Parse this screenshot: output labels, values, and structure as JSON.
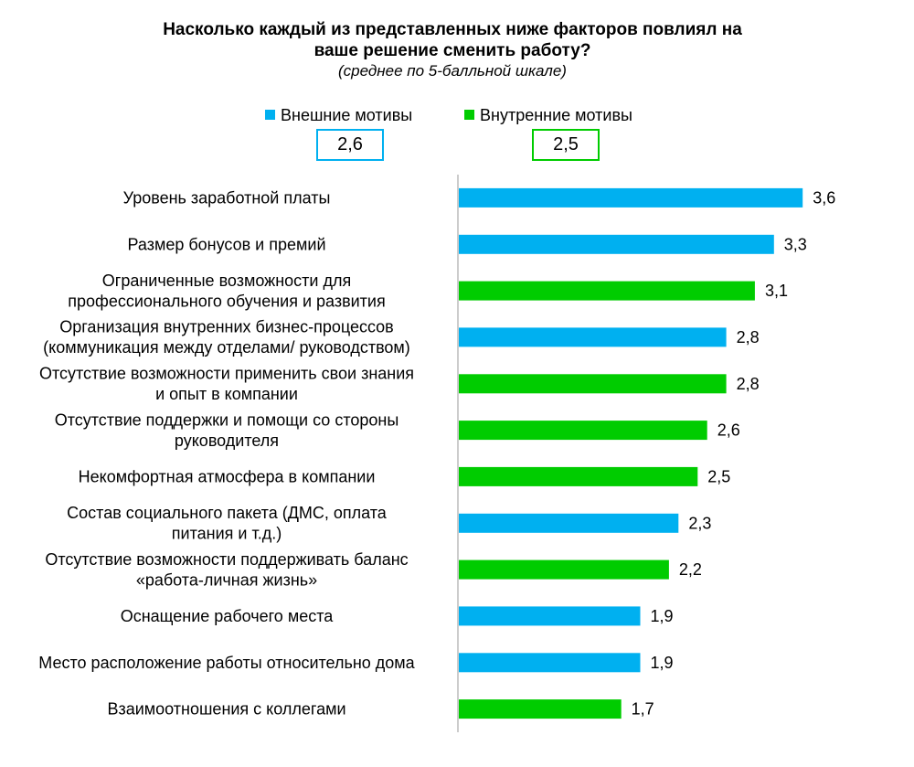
{
  "chart_data": {
    "type": "bar",
    "orientation": "horizontal",
    "title": "Насколько каждый из представленных ниже факторов повлиял на ваше решение сменить работу?",
    "title_lines": [
      "Насколько каждый из представленных ниже факторов повлиял на",
      "ваше решение сменить работу?"
    ],
    "subtitle": "(среднее по 5-балльной шкале)",
    "xlim": [
      0,
      5
    ],
    "grid": false,
    "legend_placement": "top",
    "series": [
      {
        "key": "ext",
        "name": "Внешние мотивы",
        "color": "#00B0F0",
        "average": "2,6"
      },
      {
        "key": "int",
        "name": "Внутренние мотивы",
        "color": "#00CC00",
        "average": "2,5"
      }
    ],
    "bars": [
      {
        "label": [
          "Уровень заработной платы"
        ],
        "value": 3.6,
        "display": "3,6",
        "series": "ext"
      },
      {
        "label": [
          "Размер бонусов и премий"
        ],
        "value": 3.3,
        "display": "3,3",
        "series": "ext"
      },
      {
        "label": [
          "Ограниченные возможности для",
          "профессионального обучения и развития"
        ],
        "value": 3.1,
        "display": "3,1",
        "series": "int"
      },
      {
        "label": [
          "Организация внутренних бизнес-процессов",
          "(коммуникация между отделами/ руководством)"
        ],
        "value": 2.8,
        "display": "2,8",
        "series": "ext"
      },
      {
        "label": [
          "Отсутствие возможности применить свои знания",
          "и опыт в компании"
        ],
        "value": 2.8,
        "display": "2,8",
        "series": "int"
      },
      {
        "label": [
          "Отсутствие поддержки и помощи со стороны",
          "руководителя"
        ],
        "value": 2.6,
        "display": "2,6",
        "series": "int"
      },
      {
        "label": [
          "Некомфортная атмосфера в компании"
        ],
        "value": 2.5,
        "display": "2,5",
        "series": "int"
      },
      {
        "label": [
          "Состав социального пакета (ДМС, оплата",
          "питания и т.д.)"
        ],
        "value": 2.3,
        "display": "2,3",
        "series": "ext"
      },
      {
        "label": [
          "Отсутствие возможности поддерживать баланс",
          "«работа-личная жизнь»"
        ],
        "value": 2.2,
        "display": "2,2",
        "series": "int"
      },
      {
        "label": [
          "Оснащение рабочего места"
        ],
        "value": 1.9,
        "display": "1,9",
        "series": "ext"
      },
      {
        "label": [
          "Место расположение работы относительно дома"
        ],
        "value": 1.9,
        "display": "1,9",
        "series": "ext"
      },
      {
        "label": [
          "Взаимоотношения с коллегами"
        ],
        "value": 1.7,
        "display": "1,7",
        "series": "int"
      }
    ]
  }
}
